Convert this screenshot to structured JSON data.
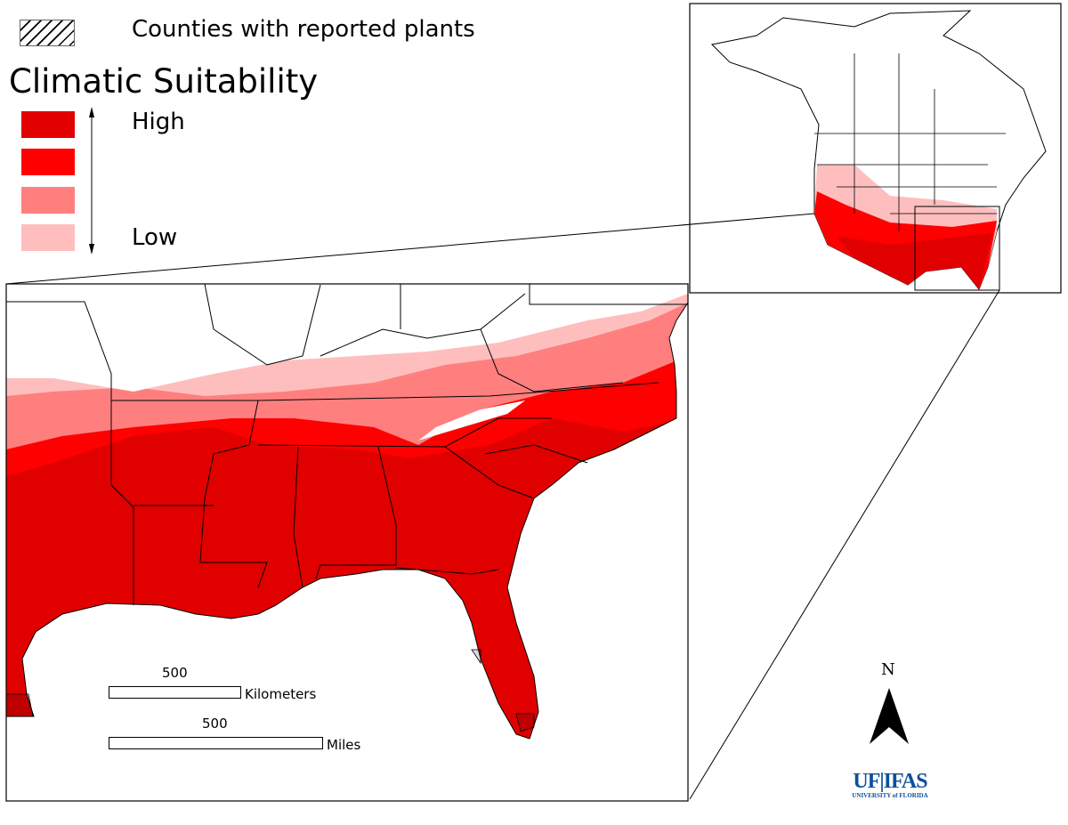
{
  "legend": {
    "hatch_label": "Counties with reported plants",
    "title": "Climatic Suitability",
    "high_label": "High",
    "low_label": "Low",
    "classes": [
      {
        "level": "high",
        "color": "#e00000"
      },
      {
        "level": "medium-high",
        "color": "#ff0000"
      },
      {
        "level": "medium-low",
        "color": "#ff7f7f"
      },
      {
        "level": "low",
        "color": "#ffbebe"
      }
    ]
  },
  "scale_bars": {
    "km_value": "500",
    "km_unit": "Kilometers",
    "mi_value": "500",
    "mi_unit": "Miles"
  },
  "north_arrow": {
    "label": "N"
  },
  "logo": {
    "main": "UF|IFAS",
    "sub": "UNIVERSITY of FLORIDA",
    "color": "#0b4f9c",
    "accent": "#f28c28"
  }
}
